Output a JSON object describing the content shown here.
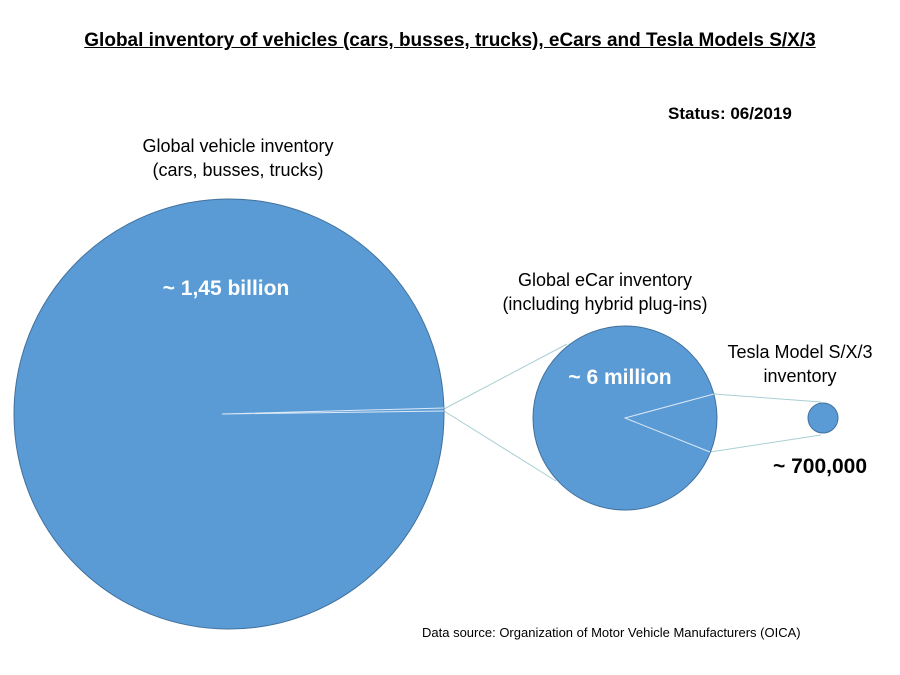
{
  "chart_data": {
    "type": "pie-of-pie",
    "title": "Global inventory of vehicles (cars, busses, trucks), eCars and Tesla Models S/X/3",
    "status": "Status: 06/2019",
    "source": "Data source: Organization of Motor Vehicle Manufacturers (OICA)",
    "items": [
      {
        "label_line1": "Global vehicle inventory",
        "label_line2": "(cars, busses, trucks)",
        "value_label": "~ 1,45 billion",
        "value": 1450000000
      },
      {
        "label_line1": "Global eCar inventory",
        "label_line2": "(including hybrid plug-ins)",
        "value_label": "~ 6 million",
        "value": 6000000
      },
      {
        "label_line1": "Tesla Model S/X/3",
        "label_line2": "inventory",
        "value_label": "~ 700,000",
        "value": 700000
      }
    ],
    "colors": {
      "fill": "#5b9bd5",
      "stroke": "#41719c",
      "connector": "#a9cfd4"
    }
  }
}
